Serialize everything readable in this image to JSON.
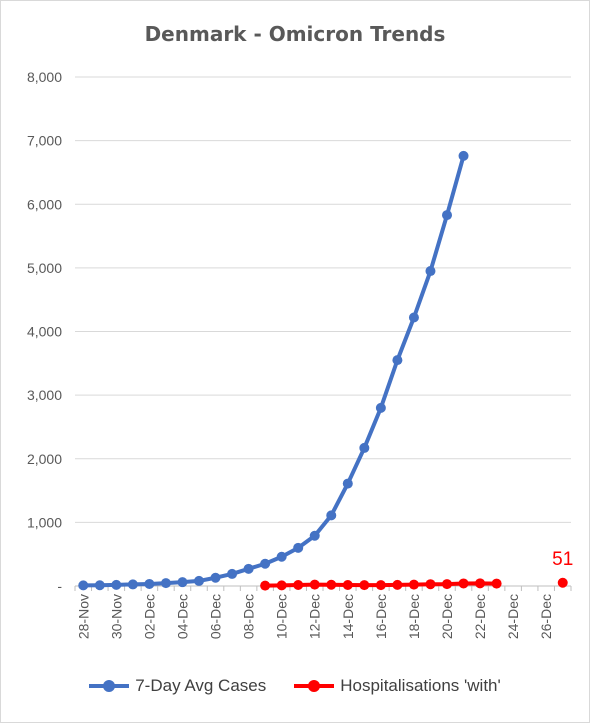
{
  "chart_data": {
    "type": "line",
    "title": "Denmark - Omicron Trends",
    "xlabel": "",
    "ylabel": "",
    "ylim": [
      0,
      8000
    ],
    "yticks": [
      0,
      1000,
      2000,
      3000,
      4000,
      5000,
      6000,
      7000,
      8000
    ],
    "ytick_labels": [
      "-",
      "1,000",
      "2,000",
      "3,000",
      "4,000",
      "5,000",
      "6,000",
      "7,000",
      "8,000"
    ],
    "x": [
      "28-Nov",
      "29-Nov",
      "30-Nov",
      "01-Dec",
      "02-Dec",
      "03-Dec",
      "04-Dec",
      "05-Dec",
      "06-Dec",
      "07-Dec",
      "08-Dec",
      "09-Dec",
      "10-Dec",
      "11-Dec",
      "12-Dec",
      "13-Dec",
      "14-Dec",
      "15-Dec",
      "16-Dec",
      "17-Dec",
      "18-Dec",
      "19-Dec",
      "20-Dec",
      "21-Dec",
      "22-Dec",
      "23-Dec",
      "24-Dec",
      "25-Dec",
      "26-Dec",
      "27-Dec"
    ],
    "xtick_labels": [
      "28-Nov",
      "30-Nov",
      "02-Dec",
      "04-Dec",
      "06-Dec",
      "08-Dec",
      "10-Dec",
      "12-Dec",
      "14-Dec",
      "16-Dec",
      "18-Dec",
      "20-Dec",
      "22-Dec",
      "24-Dec",
      "26-Dec"
    ],
    "grid": "horizontal",
    "legend": "bottom",
    "series": [
      {
        "name": "7-Day Avg Cases",
        "color": "#4472c4",
        "values": [
          10,
          12,
          18,
          25,
          32,
          45,
          60,
          80,
          130,
          190,
          270,
          350,
          460,
          600,
          790,
          1110,
          1610,
          2170,
          2800,
          3550,
          4220,
          4950,
          5830,
          6760,
          null,
          null,
          null,
          null,
          null,
          null
        ]
      },
      {
        "name": "Hospitalisations 'with'",
        "color": "#ff0000",
        "values": [
          null,
          null,
          null,
          null,
          null,
          null,
          null,
          null,
          null,
          null,
          null,
          6,
          10,
          16,
          22,
          20,
          16,
          14,
          14,
          18,
          22,
          28,
          30,
          40,
          42,
          38,
          null,
          null,
          null,
          51
        ]
      }
    ],
    "annotations": [
      {
        "text": "51",
        "x": "27-Dec",
        "y": 51,
        "color": "#ff0000"
      }
    ]
  }
}
